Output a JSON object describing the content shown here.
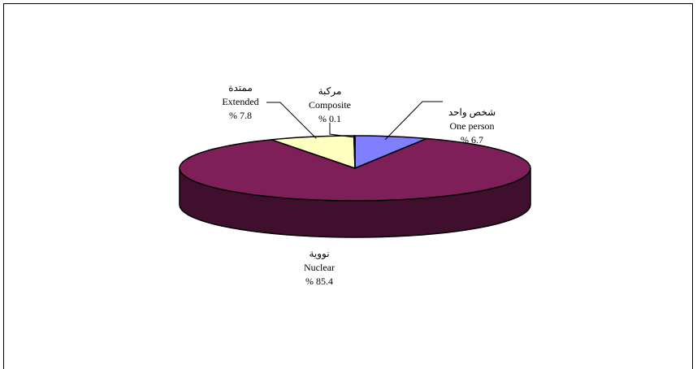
{
  "chart_data": {
    "type": "pie",
    "three_d": true,
    "slices": [
      {
        "name_ar": "شخص واحد",
        "name_en": "One person",
        "value": 6.7,
        "label": "% 6.7",
        "color": "#8080ff"
      },
      {
        "name_ar": "نووية",
        "name_en": "Nuclear",
        "value": 85.4,
        "label": "% 85.4",
        "color": "#7f1f5a"
      },
      {
        "name_ar": "ممتدة",
        "name_en": "Extended",
        "value": 7.8,
        "label": "% 7.8",
        "color": "#ffffc0"
      },
      {
        "name_ar": "مركبة",
        "name_en": "Composite",
        "value": 0.1,
        "label": "% 0.1",
        "color": "#a6caf0"
      }
    ],
    "colors": {
      "nuclear_side": "#3f0f2d",
      "one_person_side": "#404080",
      "extended_side": "#808060"
    }
  }
}
